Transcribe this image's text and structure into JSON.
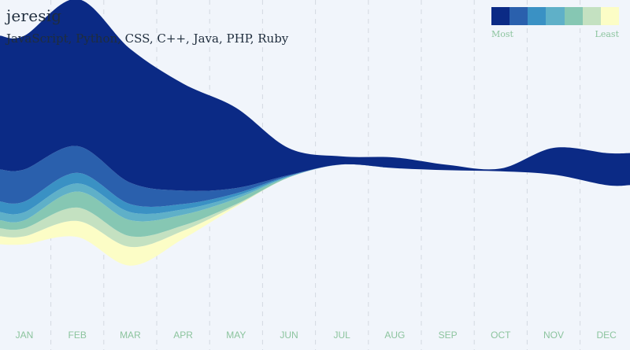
{
  "header": {
    "title": "jeresig",
    "subtitle": "JavaScript, Python, CSS, C++, Java, PHP, Ruby"
  },
  "legend": {
    "most_label": "Most",
    "least_label": "Least",
    "colors": [
      "#0b2a85",
      "#2a60ad",
      "#3a91c4",
      "#5fb0c8",
      "#86c7b3",
      "#c4e1c1",
      "#fcfdc6"
    ]
  },
  "chart_data": {
    "type": "area",
    "stacked": true,
    "layout": "streamgraph",
    "grid": true,
    "categories": [
      "JAN",
      "FEB",
      "MAR",
      "APR",
      "MAY",
      "JUN",
      "JUL",
      "AUG",
      "SEP",
      "OCT",
      "NOV",
      "DEC"
    ],
    "series": [
      {
        "name": "JavaScript",
        "color": "#0b2a85",
        "values": [
          50,
          55,
          50,
          40,
          30,
          10,
          3,
          4,
          2,
          1,
          10,
          12
        ]
      },
      {
        "name": "Python",
        "color": "#2a60ad",
        "values": [
          12,
          10,
          8,
          5,
          2,
          0.3,
          0,
          0,
          0,
          0,
          0,
          0
        ]
      },
      {
        "name": "CSS",
        "color": "#3a91c4",
        "values": [
          4,
          4,
          3,
          2,
          1,
          0.2,
          0,
          0,
          0,
          0,
          0,
          0
        ]
      },
      {
        "name": "C++",
        "color": "#5fb0c8",
        "values": [
          3,
          3,
          3,
          2,
          1,
          0.2,
          0,
          0,
          0,
          0,
          0,
          0
        ]
      },
      {
        "name": "Java",
        "color": "#86c7b3",
        "values": [
          3,
          6,
          6,
          4,
          2,
          0.2,
          0,
          0,
          0,
          0,
          0,
          0
        ]
      },
      {
        "name": "PHP",
        "color": "#c4e1c1",
        "values": [
          3,
          5,
          4,
          2,
          0.5,
          0,
          0,
          0,
          0,
          0,
          0,
          0
        ]
      },
      {
        "name": "Ruby",
        "color": "#fcfdc6",
        "values": [
          3,
          6,
          7,
          3,
          0.5,
          0,
          0,
          0,
          0,
          0,
          0,
          0
        ]
      }
    ]
  }
}
